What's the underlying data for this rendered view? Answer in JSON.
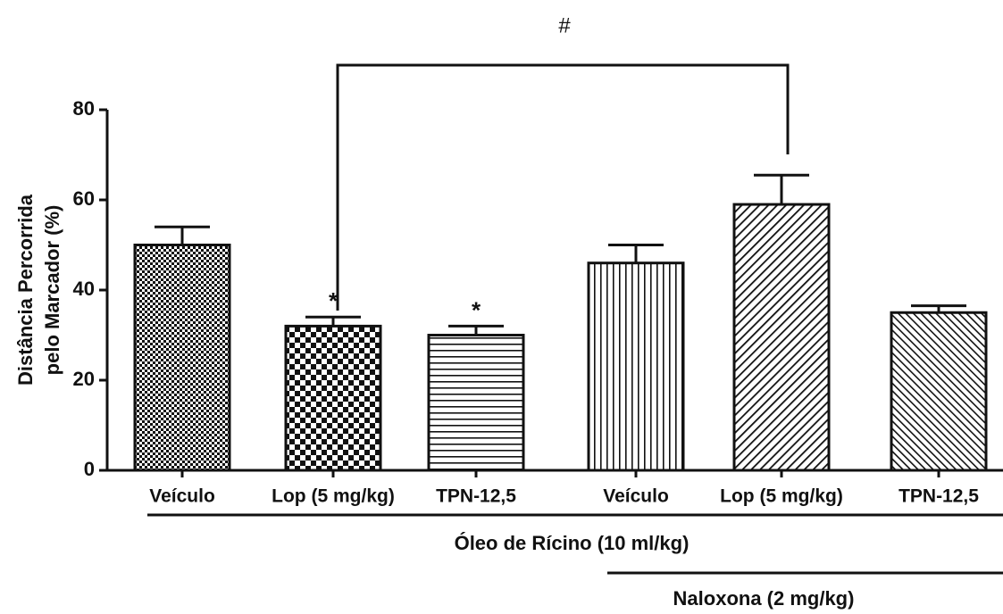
{
  "chart_data": {
    "type": "bar",
    "ylabel": [
      "Distância Percorrida",
      "pelo Marcador (%)"
    ],
    "categories": [
      "Veículo",
      "Lop (5 mg/kg)",
      "TPN-12,5",
      "Veículo",
      "Lop (5 mg/kg)",
      "TPN-12,5"
    ],
    "values": [
      50,
      32,
      30,
      46,
      59,
      35
    ],
    "errors": [
      4,
      2,
      2,
      4,
      6.5,
      1.5
    ],
    "ylim": [
      0,
      80
    ],
    "yticks": [
      0,
      20,
      40,
      60,
      80
    ],
    "annotations": [
      "*",
      "*",
      "#"
    ],
    "groups": [
      "Óleo de Rícino (10 ml/kg)",
      "Naloxona (2 mg/kg)"
    ]
  }
}
